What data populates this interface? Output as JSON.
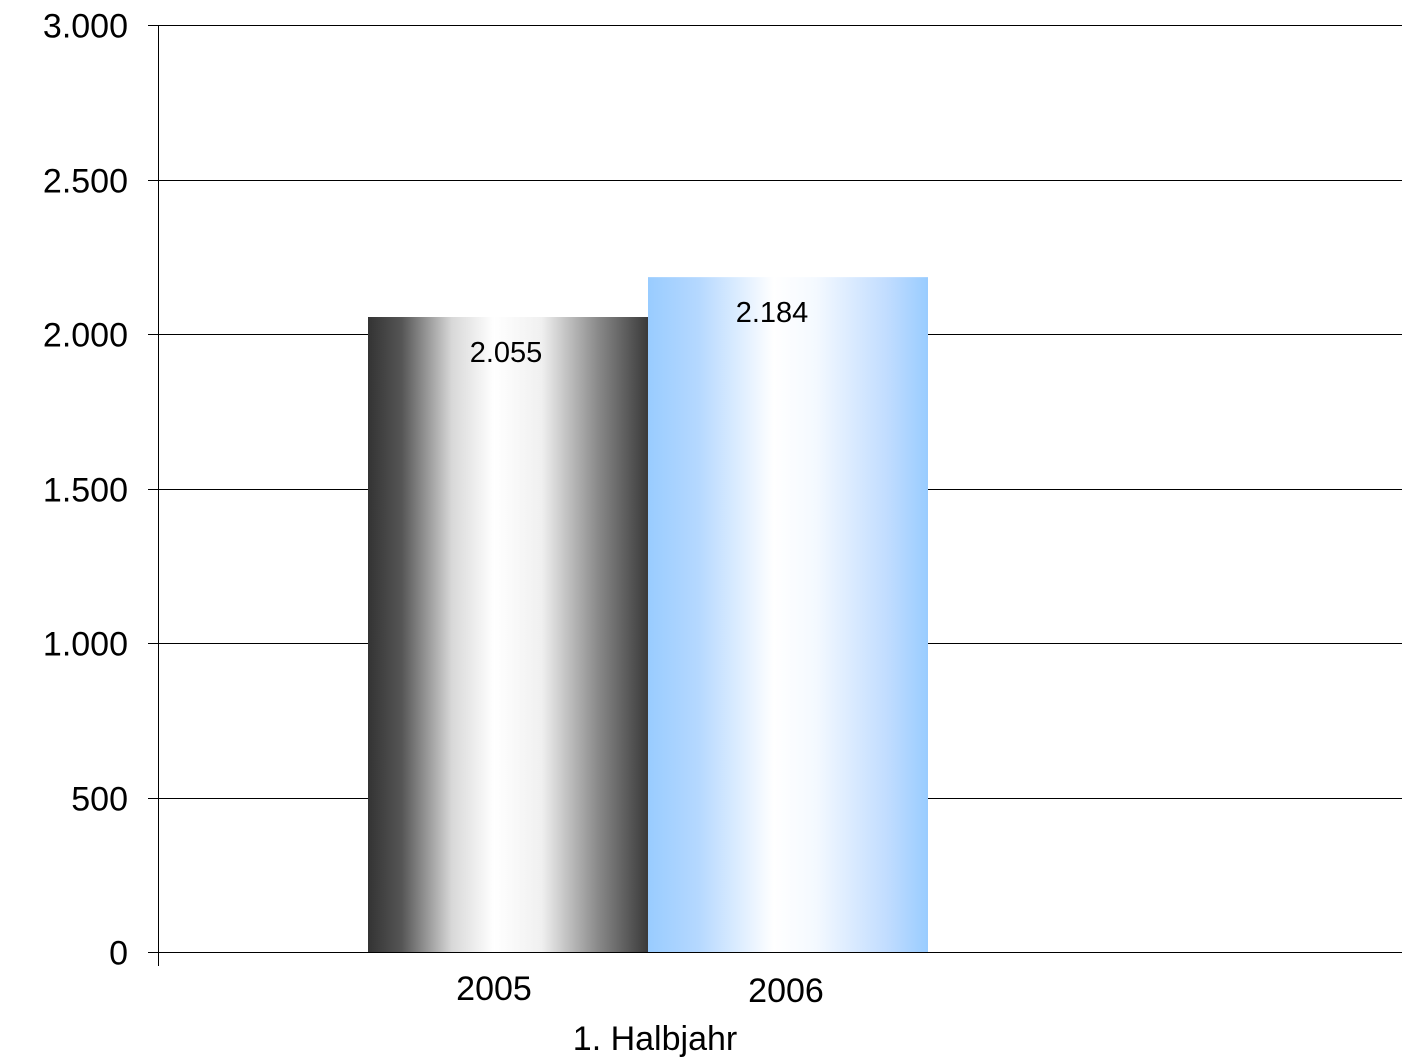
{
  "chart_data": {
    "type": "bar",
    "categories": [
      "2005",
      "2006"
    ],
    "values": [
      2055,
      2184
    ],
    "value_labels": [
      "2.055",
      "2.184"
    ],
    "group_label": "1. Halbjahr",
    "title": "",
    "xlabel": "",
    "ylabel": "",
    "ylim": [
      0,
      3000
    ],
    "yticks": [
      0,
      500,
      1000,
      1500,
      2000,
      2500,
      3000
    ],
    "ytick_labels": [
      "0",
      "500",
      "1.000",
      "1.500",
      "2.000",
      "2.500",
      "3.000"
    ],
    "grid": true,
    "legend": false,
    "colors": {
      "bar_2005": [
        "#3a3a3a",
        "#ffffff",
        "#3a3a3a"
      ],
      "bar_2006": [
        "#99ccff",
        "#ffffff",
        "#99ccff"
      ],
      "gridline": "#000000"
    }
  }
}
